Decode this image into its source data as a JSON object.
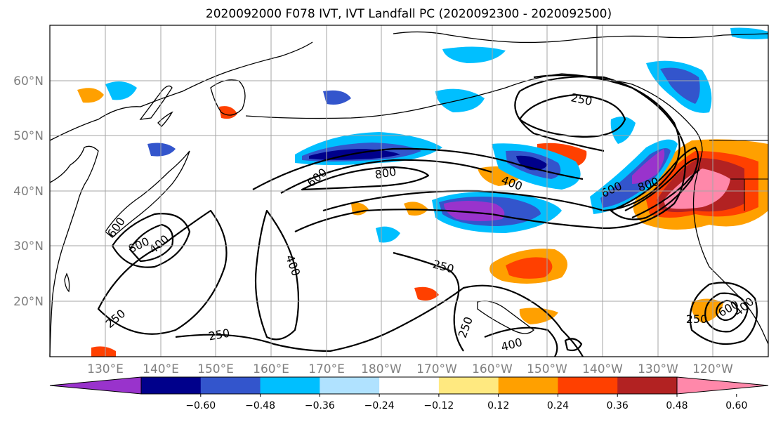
{
  "title": "2020092000 F078 IVT, IVT Landfall PC (2020092300 - 2020092500)",
  "lat_labels": [
    "60°N",
    "50°N",
    "40°N",
    "30°N",
    "20°N"
  ],
  "lon_labels": [
    "130°E",
    "140°E",
    "150°E",
    "160°E",
    "170°E",
    "180°W",
    "170°W",
    "160°W",
    "150°W",
    "140°W",
    "130°W",
    "120°W"
  ],
  "contour_labels": [
    "250",
    "800",
    "400",
    "600",
    "800",
    "600",
    "800",
    "400",
    "600",
    "400",
    "400",
    "250",
    "250",
    "250",
    "250",
    "400",
    "250",
    "600",
    "400"
  ],
  "colorbar": {
    "colors": [
      "#9933cc",
      "#00008b",
      "#3355cc",
      "#00bfff",
      "#b0e2ff",
      "#ffffff",
      "#ffe980",
      "#ffa000",
      "#ff4000",
      "#b22222",
      "#ff88aa"
    ],
    "tick_labels": [
      "−0.60",
      "−0.48",
      "−0.36",
      "−0.24",
      "−0.12",
      "0.12",
      "0.24",
      "0.36",
      "0.48",
      "0.60"
    ]
  },
  "legend_colors": {
    "purple": "#9933cc",
    "navy": "#00008b",
    "royal": "#3355cc",
    "sky": "#00bfff",
    "pale_blue": "#b0e2ff",
    "pale_yellow": "#ffe980",
    "orange": "#ffa000",
    "red_orange": "#ff4000",
    "dark_red": "#b22222",
    "pink": "#ff88aa"
  },
  "map": {
    "projection": "PlateCarree",
    "lon_range": [
      "120°E",
      "115°W"
    ],
    "lat_range": [
      "10°N",
      "70°N"
    ],
    "gridlines": true
  }
}
